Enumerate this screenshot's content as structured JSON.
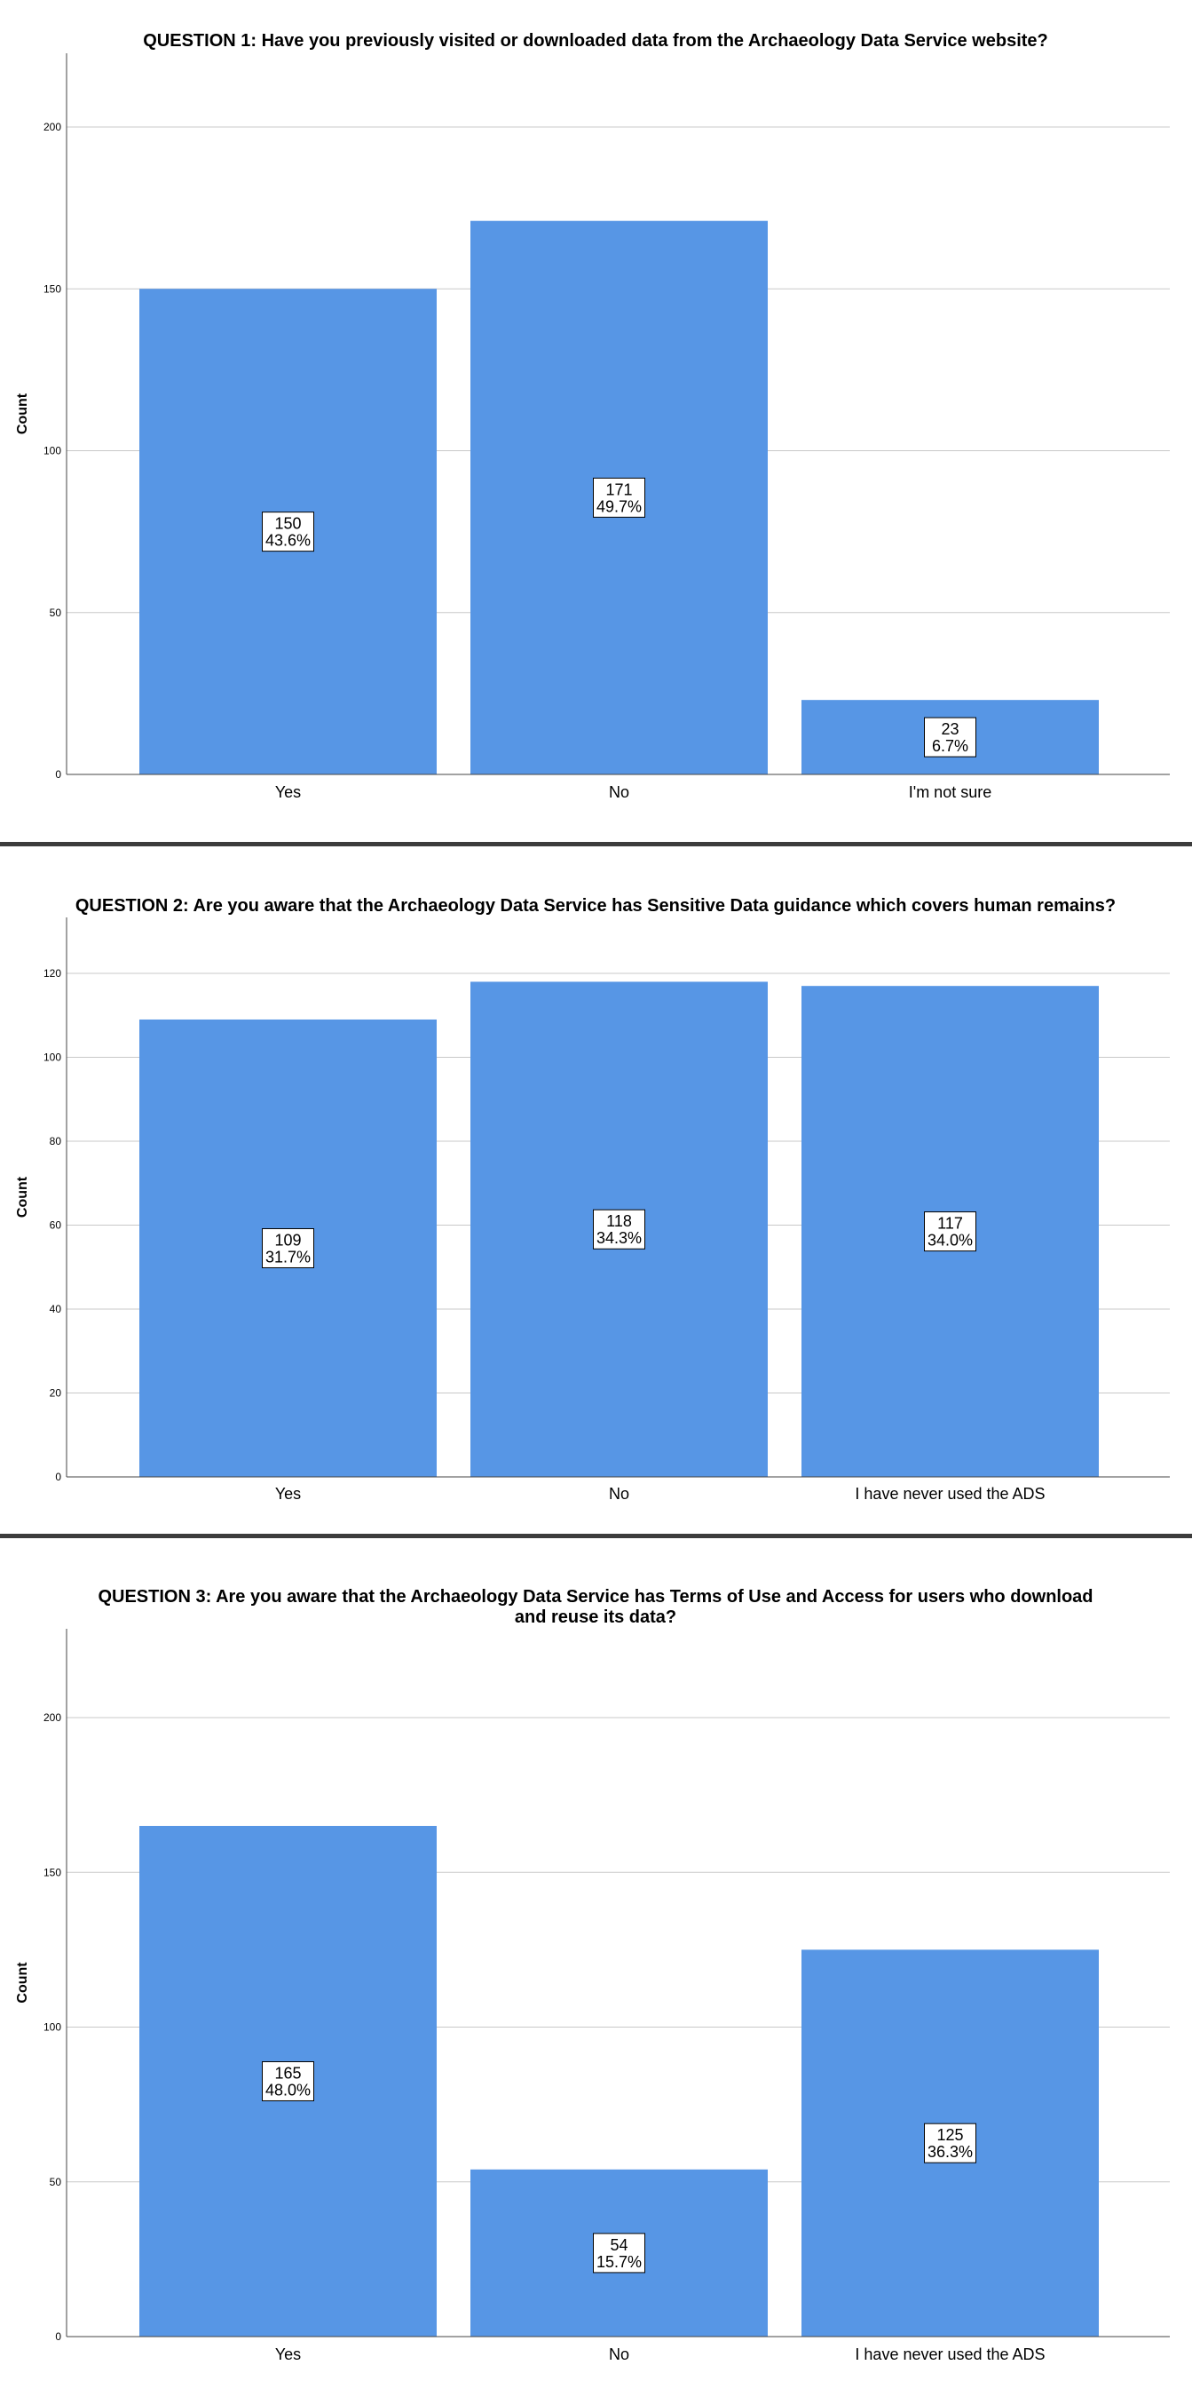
{
  "chart_data": [
    {
      "type": "bar",
      "title": [
        "QUESTION 1: Have you previously visited or downloaded data from the Archaeology Data Service website?"
      ],
      "ylabel": "Count",
      "ylim": [
        0,
        200
      ],
      "yticks": [
        0,
        50,
        100,
        150,
        200
      ],
      "grid": true,
      "color": "#5796e5",
      "categories": [
        "Yes",
        "No",
        "I'm not sure"
      ],
      "values": [
        150,
        171,
        23
      ],
      "percent_labels": [
        "43.6%",
        "49.7%",
        "6.7%"
      ]
    },
    {
      "type": "bar",
      "title": [
        "QUESTION 2: Are you aware that the Archaeology Data Service has Sensitive Data guidance which covers human remains?"
      ],
      "ylabel": "Count",
      "ylim": [
        0,
        120
      ],
      "yticks": [
        0,
        20,
        40,
        60,
        80,
        100,
        120
      ],
      "grid": true,
      "color": "#5796e5",
      "categories": [
        "Yes",
        "No",
        "I have never used the ADS"
      ],
      "values": [
        109,
        118,
        117
      ],
      "percent_labels": [
        "31.7%",
        "34.3%",
        "34.0%"
      ]
    },
    {
      "type": "bar",
      "title": [
        "QUESTION 3: Are you aware that the Archaeology Data Service has Terms of Use and Access for users who download",
        "and reuse its data?"
      ],
      "ylabel": "Count",
      "ylim": [
        0,
        200
      ],
      "yticks": [
        0,
        50,
        100,
        150,
        200
      ],
      "grid": true,
      "color": "#5796e5",
      "categories": [
        "Yes",
        "No",
        "I have never used the ADS"
      ],
      "values": [
        165,
        54,
        125
      ],
      "percent_labels": [
        "48.0%",
        "15.7%",
        "36.3%"
      ]
    }
  ]
}
